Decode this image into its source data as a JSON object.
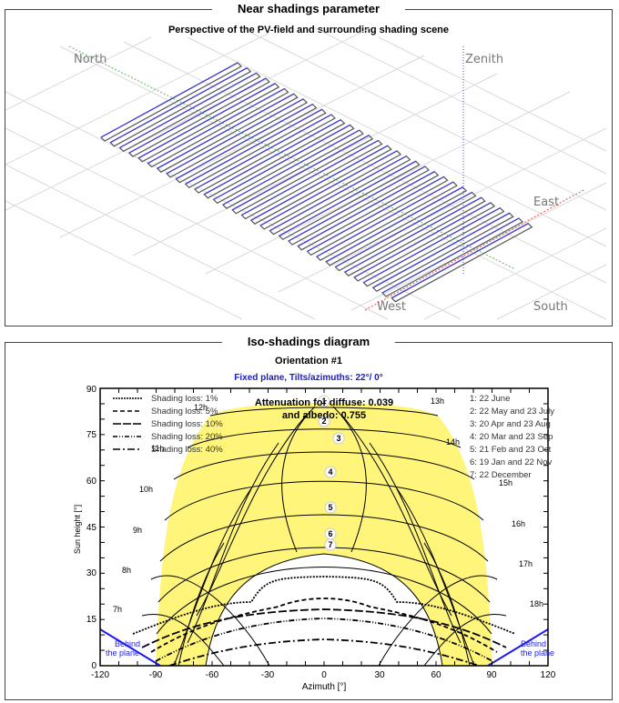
{
  "near_shadings": {
    "panel_title": "Near shadings parameter",
    "subtitle": "Perspective of the PV-field and surrounding shading scene",
    "directions": {
      "north": "North",
      "zenith": "Zenith",
      "east": "East",
      "west": "West",
      "south": "South"
    },
    "row_count": 32
  },
  "iso_shadings": {
    "panel_title": "Iso-shadings diagram",
    "subtitle": "Orientation #1",
    "plane_info": "Fixed plane, Tilts/azimuths: 22°/ 0°",
    "attenuation_line1": "Attenuation for diffuse: 0.039",
    "attenuation_line2": "and albedo: 0.755",
    "behind_plane_left": [
      "Behind",
      "the plane"
    ],
    "behind_plane_right": [
      "Behind",
      "the plane"
    ]
  },
  "chart_data": {
    "type": "line",
    "title": "Iso-shadings diagram",
    "subtitle": "Orientation #1 — Fixed plane, Tilts/azimuths: 22°/ 0°",
    "xlabel": "Azimuth [°]",
    "ylabel": "Sun height [°]",
    "xlim": [
      -120,
      120
    ],
    "ylim": [
      0,
      90
    ],
    "xticks": [
      -120,
      -90,
      -60,
      -30,
      0,
      30,
      60,
      90,
      120
    ],
    "yticks": [
      0,
      15,
      30,
      45,
      60,
      75,
      90
    ],
    "legend_loss": [
      {
        "label": "Shading loss: 1%",
        "style": "dotted"
      },
      {
        "label": "Shading loss: 5%",
        "style": "dashed"
      },
      {
        "label": "Shading loss: 10%",
        "style": "long-dash"
      },
      {
        "label": "Shading loss: 20%",
        "style": "dash-dot-dot"
      },
      {
        "label": "Shading loss: 40%",
        "style": "dash-dot"
      }
    ],
    "legend_dates": [
      "1: 22 June",
      "2: 22 May and 23 July",
      "3: 20 Apr and 23 Aug",
      "4: 20 Mar and 23 Sep",
      "5: 21 Feb and 23 Oct",
      "6: 19 Jan and 22 Nov",
      "7: 22 December"
    ],
    "hour_labels": [
      "7h",
      "8h",
      "9h",
      "10h",
      "11h",
      "12h",
      "13h",
      "14h",
      "15h",
      "16h",
      "17h",
      "18h"
    ],
    "sun_path_peaks": [
      {
        "id": "1",
        "max_height": 90
      },
      {
        "id": "2",
        "max_height": 83
      },
      {
        "id": "3",
        "max_height": 74
      },
      {
        "id": "4",
        "max_height": 63
      },
      {
        "id": "5",
        "max_height": 52
      },
      {
        "id": "6",
        "max_height": 43
      },
      {
        "id": "7",
        "max_height": 39
      }
    ],
    "iso_shading_curves": [
      {
        "loss": "1%",
        "points": [
          [
            -90,
            10
          ],
          [
            -70,
            15
          ],
          [
            -50,
            20
          ],
          [
            -40,
            20
          ],
          [
            -35,
            27
          ],
          [
            -25,
            29
          ],
          [
            0,
            29
          ],
          [
            25,
            29
          ],
          [
            35,
            27
          ],
          [
            40,
            20
          ],
          [
            50,
            20
          ],
          [
            70,
            15
          ],
          [
            90,
            10
          ]
        ]
      },
      {
        "loss": "5%",
        "points": [
          [
            -85,
            7
          ],
          [
            -65,
            14
          ],
          [
            -45,
            17
          ],
          [
            -20,
            22
          ],
          [
            0,
            24
          ],
          [
            20,
            22
          ],
          [
            45,
            17
          ],
          [
            65,
            14
          ],
          [
            85,
            7
          ]
        ]
      },
      {
        "loss": "10%",
        "points": [
          [
            -90,
            5
          ],
          [
            -65,
            11
          ],
          [
            -45,
            17
          ],
          [
            -20,
            19
          ],
          [
            0,
            20
          ],
          [
            20,
            19
          ],
          [
            45,
            17
          ],
          [
            65,
            11
          ],
          [
            90,
            5
          ]
        ]
      },
      {
        "loss": "20%",
        "points": [
          [
            -80,
            2
          ],
          [
            -60,
            9
          ],
          [
            -40,
            14
          ],
          [
            -20,
            16
          ],
          [
            0,
            17
          ],
          [
            20,
            16
          ],
          [
            40,
            14
          ],
          [
            60,
            9
          ],
          [
            80,
            2
          ]
        ]
      },
      {
        "loss": "40%",
        "points": [
          [
            -70,
            0
          ],
          [
            -50,
            5
          ],
          [
            -30,
            9
          ],
          [
            0,
            10
          ],
          [
            30,
            9
          ],
          [
            50,
            5
          ],
          [
            70,
            0
          ]
        ]
      }
    ]
  }
}
